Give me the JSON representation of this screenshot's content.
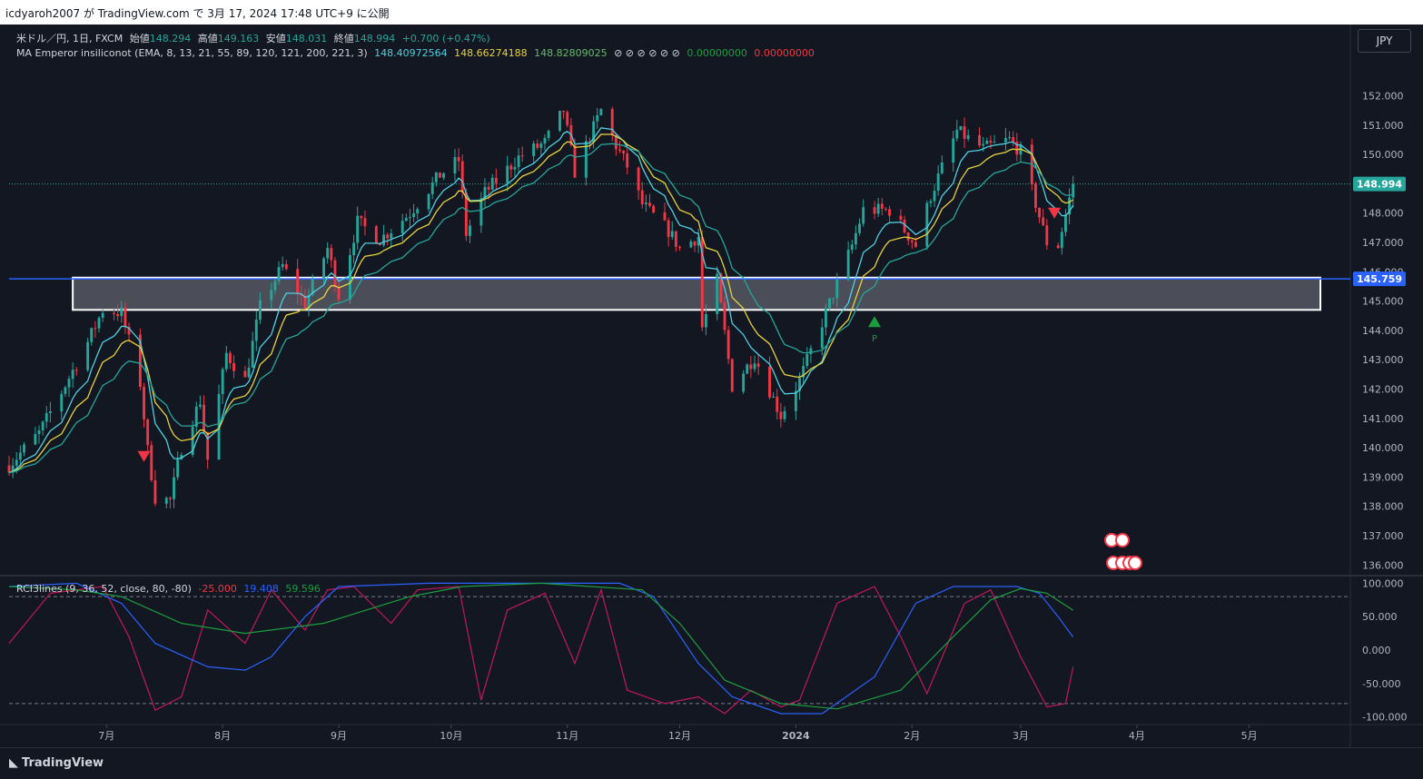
{
  "header": {
    "attribution": "icdyaroh2007 が TradingView.com で 3月 17, 2024 17:48 UTC+9 に公開"
  },
  "legend": {
    "symbol": "米ドル／円, 1日, FXCM",
    "open_label": "始値",
    "open": "148.294",
    "high_label": "高値",
    "high": "149.163",
    "low_label": "安値",
    "low": "148.031",
    "close_label": "終値",
    "close": "148.994",
    "change": "+0.700 (+0.47%)",
    "ma_name": "MA Emperor insiliconot (EMA, 8, 13, 21, 55, 89, 120, 121, 200, 221, 3)",
    "ma_values": [
      "148.40972564",
      "148.66274188",
      "148.82809025"
    ],
    "ma_empty": "⊘ ⊘ ⊘ ⊘ ⊘ ⊘",
    "ma_extra": [
      "0.00000000",
      "0.00000000"
    ],
    "rci_name": "RCI3lines (9, 36, 52, close, 80, -80)",
    "rci_values": [
      "-25.000",
      "19.408",
      "59.596"
    ]
  },
  "currency_button": "JPY",
  "footer": {
    "logo": "TradingView"
  },
  "colors": {
    "bg": "#131722",
    "up": "#26a69a",
    "down": "#f23645",
    "ema_fast": "#4dd0e1",
    "ema_mid": "#e6d23c",
    "ema_slow": "#26a69a",
    "rci_short": "#c2185b",
    "rci_mid": "#2962ff",
    "rci_long": "#1b9e3e",
    "level_line": "#2962ff"
  },
  "chart_data": [
    {
      "type": "candlestick",
      "title": "米ドル／円, 1日, FXCM",
      "x_tick_labels": [
        "7月",
        "8月",
        "9月",
        "10月",
        "11月",
        "12月",
        "2024",
        "2月",
        "3月",
        "4月",
        "5月"
      ],
      "x_range": [
        "2023-06-05",
        "2024-05-28"
      ],
      "y_tick_labels": [
        "136.000",
        "137.000",
        "138.000",
        "139.000",
        "140.000",
        "141.000",
        "142.000",
        "143.000",
        "144.000",
        "145.000",
        "146.000",
        "147.000",
        "148.000",
        "149.000",
        "150.000",
        "151.000",
        "152.000"
      ],
      "ylim": [
        135.7,
        153.1
      ],
      "last_price_label": "148.994",
      "level_label": "145.759",
      "level_value": 145.759,
      "zone": {
        "from_date": "2023-06-22",
        "to_date": "2024-05-20",
        "low": 144.7,
        "high": 145.8
      },
      "markers": [
        {
          "type": "triangle-down",
          "date": "2023-07-11",
          "price": 139.7
        },
        {
          "type": "triangle-up",
          "date": "2024-01-22",
          "price": 144.3,
          "label": "P"
        },
        {
          "type": "triangle-down",
          "date": "2024-03-10",
          "price": 148.0
        }
      ],
      "ema_legend": [
        "148.40972564",
        "148.66274188",
        "148.82809025"
      ],
      "price_path": [
        {
          "date": "2023-06-05",
          "close": 139.4
        },
        {
          "date": "2023-06-13",
          "close": 140.5
        },
        {
          "date": "2023-06-19",
          "close": 141.9
        },
        {
          "date": "2023-06-26",
          "close": 143.6
        },
        {
          "date": "2023-06-30",
          "close": 144.7
        },
        {
          "date": "2023-07-05",
          "close": 144.6
        },
        {
          "date": "2023-07-10",
          "close": 142.2
        },
        {
          "date": "2023-07-12",
          "close": 139.9
        },
        {
          "date": "2023-07-14",
          "close": 138.3
        },
        {
          "date": "2023-07-18",
          "close": 138.2
        },
        {
          "date": "2023-07-21",
          "close": 140.0
        },
        {
          "date": "2023-07-26",
          "close": 141.6
        },
        {
          "date": "2023-07-28",
          "close": 139.6
        },
        {
          "date": "2023-08-02",
          "close": 143.2
        },
        {
          "date": "2023-08-07",
          "close": 142.3
        },
        {
          "date": "2023-08-11",
          "close": 144.8
        },
        {
          "date": "2023-08-17",
          "close": 146.2
        },
        {
          "date": "2023-08-23",
          "close": 144.9
        },
        {
          "date": "2023-08-29",
          "close": 146.8
        },
        {
          "date": "2023-09-01",
          "close": 145.2
        },
        {
          "date": "2023-09-06",
          "close": 147.7
        },
        {
          "date": "2023-09-12",
          "close": 147.1
        },
        {
          "date": "2023-09-20",
          "close": 148.0
        },
        {
          "date": "2023-09-28",
          "close": 149.3
        },
        {
          "date": "2023-10-03",
          "close": 149.8
        },
        {
          "date": "2023-10-05",
          "close": 147.3
        },
        {
          "date": "2023-10-10",
          "close": 148.7
        },
        {
          "date": "2023-10-19",
          "close": 149.9
        },
        {
          "date": "2023-10-26",
          "close": 150.4
        },
        {
          "date": "2023-10-31",
          "close": 151.5
        },
        {
          "date": "2023-11-03",
          "close": 149.4
        },
        {
          "date": "2023-11-10",
          "close": 151.5
        },
        {
          "date": "2023-11-14",
          "close": 150.3
        },
        {
          "date": "2023-11-17",
          "close": 149.6
        },
        {
          "date": "2023-11-21",
          "close": 148.3
        },
        {
          "date": "2023-11-28",
          "close": 147.4
        },
        {
          "date": "2023-12-01",
          "close": 146.8
        },
        {
          "date": "2023-12-06",
          "close": 147.2
        },
        {
          "date": "2023-12-07",
          "close": 144.1
        },
        {
          "date": "2023-12-11",
          "close": 145.7
        },
        {
          "date": "2023-12-15",
          "close": 142.1
        },
        {
          "date": "2023-12-21",
          "close": 143.1
        },
        {
          "date": "2023-12-28",
          "close": 141.1
        },
        {
          "date": "2024-01-02",
          "close": 142.3
        },
        {
          "date": "2024-01-09",
          "close": 144.6
        },
        {
          "date": "2024-01-16",
          "close": 146.9
        },
        {
          "date": "2024-01-19",
          "close": 148.1
        },
        {
          "date": "2024-01-26",
          "close": 148.1
        },
        {
          "date": "2024-02-02",
          "close": 146.9
        },
        {
          "date": "2024-02-06",
          "close": 148.6
        },
        {
          "date": "2024-02-13",
          "close": 150.8
        },
        {
          "date": "2024-02-20",
          "close": 150.2
        },
        {
          "date": "2024-02-27",
          "close": 150.5
        },
        {
          "date": "2024-03-01",
          "close": 150.1
        },
        {
          "date": "2024-03-08",
          "close": 147.0
        },
        {
          "date": "2024-03-11",
          "close": 146.9
        },
        {
          "date": "2024-03-15",
          "close": 148.994
        }
      ]
    },
    {
      "type": "line",
      "title": "RCI3lines (9, 36, 52, close, 80, -80)",
      "y_tick_labels": [
        "100.000",
        "50.000",
        "0.000",
        "-50.000",
        "-100.000"
      ],
      "ylim": [
        -110,
        110
      ],
      "bands": [
        80,
        -80
      ],
      "series": [
        {
          "name": "9",
          "last": "-25.000",
          "points": [
            {
              "date": "2023-06-05",
              "value": 10
            },
            {
              "date": "2023-06-16",
              "value": 85
            },
            {
              "date": "2023-06-30",
              "value": 95
            },
            {
              "date": "2023-07-07",
              "value": 20
            },
            {
              "date": "2023-07-14",
              "value": -90
            },
            {
              "date": "2023-07-21",
              "value": -70
            },
            {
              "date": "2023-07-28",
              "value": 60
            },
            {
              "date": "2023-08-07",
              "value": 10
            },
            {
              "date": "2023-08-14",
              "value": 90
            },
            {
              "date": "2023-08-23",
              "value": 30
            },
            {
              "date": "2023-08-29",
              "value": 90
            },
            {
              "date": "2023-09-05",
              "value": 95
            },
            {
              "date": "2023-09-15",
              "value": 40
            },
            {
              "date": "2023-09-22",
              "value": 90
            },
            {
              "date": "2023-10-03",
              "value": 95
            },
            {
              "date": "2023-10-09",
              "value": -75
            },
            {
              "date": "2023-10-16",
              "value": 60
            },
            {
              "date": "2023-10-26",
              "value": 85
            },
            {
              "date": "2023-11-03",
              "value": -20
            },
            {
              "date": "2023-11-10",
              "value": 90
            },
            {
              "date": "2023-11-17",
              "value": -60
            },
            {
              "date": "2023-11-27",
              "value": -80
            },
            {
              "date": "2023-12-06",
              "value": -70
            },
            {
              "date": "2023-12-13",
              "value": -95
            },
            {
              "date": "2023-12-20",
              "value": -60
            },
            {
              "date": "2023-12-28",
              "value": -85
            },
            {
              "date": "2024-01-02",
              "value": -75
            },
            {
              "date": "2024-01-12",
              "value": 70
            },
            {
              "date": "2024-01-22",
              "value": 95
            },
            {
              "date": "2024-01-29",
              "value": 20
            },
            {
              "date": "2024-02-05",
              "value": -65
            },
            {
              "date": "2024-02-15",
              "value": 70
            },
            {
              "date": "2024-02-22",
              "value": 90
            },
            {
              "date": "2024-03-01",
              "value": -10
            },
            {
              "date": "2024-03-08",
              "value": -85
            },
            {
              "date": "2024-03-13",
              "value": -80
            },
            {
              "date": "2024-03-15",
              "value": -25
            }
          ]
        },
        {
          "name": "36",
          "last": "19.408",
          "points": [
            {
              "date": "2023-06-05",
              "value": 95
            },
            {
              "date": "2023-06-23",
              "value": 100
            },
            {
              "date": "2023-07-05",
              "value": 70
            },
            {
              "date": "2023-07-14",
              "value": 10
            },
            {
              "date": "2023-07-28",
              "value": -25
            },
            {
              "date": "2023-08-07",
              "value": -30
            },
            {
              "date": "2023-08-14",
              "value": -10
            },
            {
              "date": "2023-08-23",
              "value": 50
            },
            {
              "date": "2023-09-01",
              "value": 95
            },
            {
              "date": "2023-09-25",
              "value": 100
            },
            {
              "date": "2023-10-25",
              "value": 100
            },
            {
              "date": "2023-11-15",
              "value": 100
            },
            {
              "date": "2023-11-24",
              "value": 80
            },
            {
              "date": "2023-12-06",
              "value": -20
            },
            {
              "date": "2023-12-15",
              "value": -70
            },
            {
              "date": "2023-12-28",
              "value": -95
            },
            {
              "date": "2024-01-08",
              "value": -95
            },
            {
              "date": "2024-01-22",
              "value": -40
            },
            {
              "date": "2024-02-02",
              "value": 70
            },
            {
              "date": "2024-02-12",
              "value": 95
            },
            {
              "date": "2024-02-29",
              "value": 95
            },
            {
              "date": "2024-03-06",
              "value": 85
            },
            {
              "date": "2024-03-11",
              "value": 50
            },
            {
              "date": "2024-03-15",
              "value": 19.408
            }
          ]
        },
        {
          "name": "52",
          "last": "59.596",
          "points": [
            {
              "date": "2023-06-05",
              "value": 95
            },
            {
              "date": "2023-06-23",
              "value": 90
            },
            {
              "date": "2023-07-05",
              "value": 80
            },
            {
              "date": "2023-07-21",
              "value": 40
            },
            {
              "date": "2023-08-07",
              "value": 25
            },
            {
              "date": "2023-08-28",
              "value": 40
            },
            {
              "date": "2023-09-20",
              "value": 80
            },
            {
              "date": "2023-10-04",
              "value": 95
            },
            {
              "date": "2023-10-25",
              "value": 100
            },
            {
              "date": "2023-11-21",
              "value": 90
            },
            {
              "date": "2023-12-01",
              "value": 40
            },
            {
              "date": "2023-12-13",
              "value": -45
            },
            {
              "date": "2023-12-28",
              "value": -80
            },
            {
              "date": "2024-01-12",
              "value": -88
            },
            {
              "date": "2024-01-29",
              "value": -60
            },
            {
              "date": "2024-02-12",
              "value": 20
            },
            {
              "date": "2024-02-22",
              "value": 75
            },
            {
              "date": "2024-03-01",
              "value": 92
            },
            {
              "date": "2024-03-08",
              "value": 85
            },
            {
              "date": "2024-03-15",
              "value": 59.596
            }
          ]
        }
      ]
    }
  ]
}
